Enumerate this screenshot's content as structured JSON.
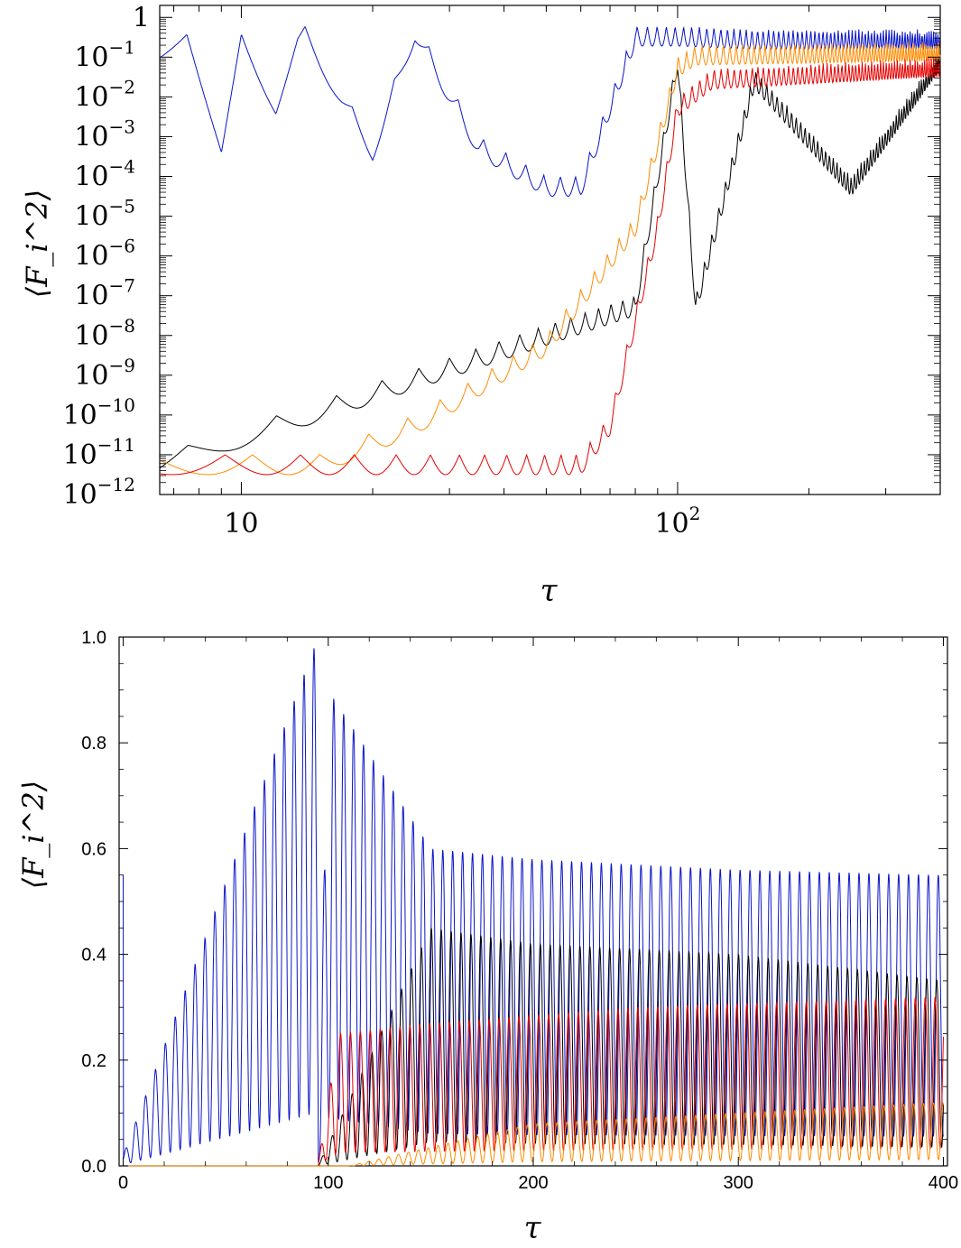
{
  "chart_data": [
    {
      "type": "line",
      "xscale": "log",
      "yscale": "log",
      "xlim": [
        6.5,
        400
      ],
      "ylim": [
        1e-12,
        2
      ],
      "xlabel": "τ",
      "ylabel": "⟨F_i^2⟩",
      "xticks": [
        {
          "value": 10,
          "label": "10"
        },
        {
          "value": 100,
          "label": "10",
          "sup": "2"
        }
      ],
      "yticks": [
        {
          "value": 1,
          "label": "1"
        },
        {
          "value": 0.1,
          "label": "10",
          "sup": "−1"
        },
        {
          "value": 0.01,
          "label": "10",
          "sup": "−2"
        },
        {
          "value": 0.001,
          "label": "10",
          "sup": "−3"
        },
        {
          "value": 0.0001,
          "label": "10",
          "sup": "−4"
        },
        {
          "value": 1e-05,
          "label": "10",
          "sup": "−5"
        },
        {
          "value": 1e-06,
          "label": "10",
          "sup": "−6"
        },
        {
          "value": 1e-07,
          "label": "10",
          "sup": "−7"
        },
        {
          "value": 1e-08,
          "label": "10",
          "sup": "−8"
        },
        {
          "value": 1e-09,
          "label": "10",
          "sup": "−9"
        },
        {
          "value": 1e-10,
          "label": "10",
          "sup": "−10"
        },
        {
          "value": 1e-11,
          "label": "10",
          "sup": "−11"
        },
        {
          "value": 1e-12,
          "label": "10",
          "sup": "−12"
        }
      ],
      "series": [
        {
          "color": "#0a14c8",
          "values": [
            [
              6.5,
              0.3
            ],
            [
              7.5,
              1.0
            ],
            [
              9,
              0.0004
            ],
            [
              10,
              0.8
            ],
            [
              12,
              0.01
            ],
            [
              14,
              0.9
            ],
            [
              17,
              0.015
            ],
            [
              20,
              0.0008
            ],
            [
              25,
              0.8
            ],
            [
              35,
              0.001
            ],
            [
              50,
              0.0001
            ],
            [
              60,
              0.0001
            ],
            [
              80,
              0.6
            ],
            [
              100,
              0.6
            ],
            [
              150,
              0.5
            ],
            [
              400,
              0.5
            ]
          ]
        },
        {
          "color": "#000000",
          "values": [
            [
              6.5,
              1e-11
            ],
            [
              80,
              1e-07
            ],
            [
              100,
              0.15
            ],
            [
              110,
              1e-07
            ],
            [
              150,
              0.05
            ],
            [
              250,
              0.0001
            ],
            [
              400,
              0.15
            ]
          ]
        },
        {
          "color": "#ff8c00",
          "values": [
            [
              6.5,
              1e-11
            ],
            [
              15,
              1e-11
            ],
            [
              25,
              1e-10
            ],
            [
              50,
              1e-08
            ],
            [
              80,
              1e-05
            ],
            [
              100,
              0.1
            ],
            [
              110,
              0.2
            ],
            [
              400,
              0.25
            ]
          ]
        },
        {
          "color": "#e60000",
          "values": [
            [
              6.5,
              1e-11
            ],
            [
              60,
              1e-11
            ],
            [
              70,
              1e-10
            ],
            [
              90,
              1e-05
            ],
            [
              100,
              0.01
            ],
            [
              120,
              0.05
            ],
            [
              400,
              0.1
            ]
          ]
        }
      ]
    },
    {
      "type": "line",
      "xlim": [
        -2,
        402
      ],
      "ylim": [
        0,
        1.0
      ],
      "xlabel": "τ",
      "ylabel": "⟨F_i^2⟩",
      "xticks": [
        {
          "value": 0,
          "label": "0"
        },
        {
          "value": 100,
          "label": "100"
        },
        {
          "value": 200,
          "label": "200"
        },
        {
          "value": 300,
          "label": "300"
        },
        {
          "value": 400,
          "label": "400"
        }
      ],
      "yticks": [
        {
          "value": 0.0,
          "label": "0.0"
        },
        {
          "value": 0.2,
          "label": "0.2"
        },
        {
          "value": 0.4,
          "label": "0.4"
        },
        {
          "value": 0.6,
          "label": "0.6"
        },
        {
          "value": 0.8,
          "label": "0.8"
        },
        {
          "value": 1.0,
          "label": "1.0"
        }
      ],
      "series": [
        {
          "color": "#0a14c8",
          "values": [
            [
              0,
              1.0
            ],
            [
              0,
              0.02
            ],
            [
              95,
              1.0
            ],
            [
              95,
              0.02
            ],
            [
              100,
              0.9
            ],
            [
              150,
              0.6
            ],
            [
              200,
              0.58
            ],
            [
              300,
              0.56
            ],
            [
              400,
              0.55
            ],
            [
              400,
              0.44
            ]
          ]
        },
        {
          "color": "#000000",
          "values": [
            [
              95,
              0.0
            ],
            [
              150,
              0.45
            ],
            [
              200,
              0.42
            ],
            [
              300,
              0.4
            ],
            [
              400,
              0.35
            ],
            [
              400,
              0.0
            ]
          ]
        },
        {
          "color": "#e60000",
          "values": [
            [
              0,
              0.0
            ],
            [
              95,
              0.0
            ],
            [
              105,
              0.25
            ],
            [
              150,
              0.27
            ],
            [
              250,
              0.3
            ],
            [
              400,
              0.32
            ],
            [
              400,
              0.15
            ]
          ]
        },
        {
          "color": "#ff8c00",
          "values": [
            [
              0,
              0.0
            ],
            [
              110,
              0.0
            ],
            [
              200,
              0.08
            ],
            [
              300,
              0.1
            ],
            [
              400,
              0.12
            ],
            [
              400,
              0.05
            ]
          ]
        }
      ]
    }
  ]
}
